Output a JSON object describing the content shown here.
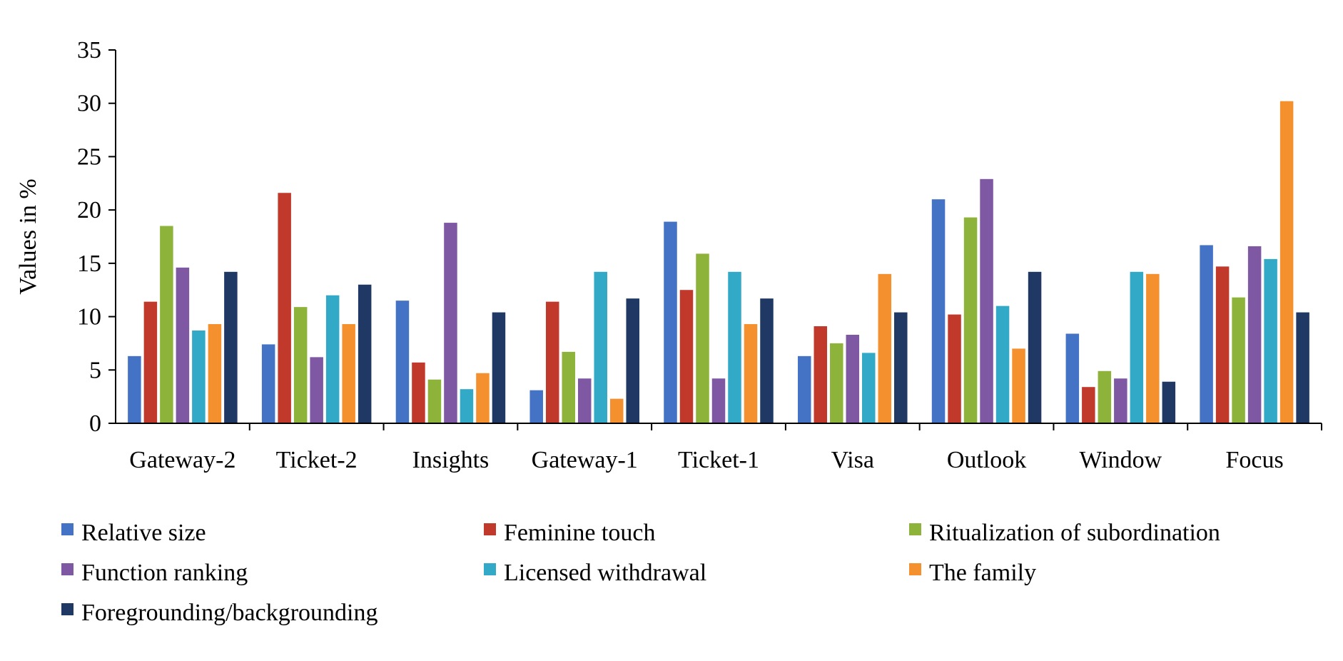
{
  "chart_data": {
    "type": "bar",
    "categories": [
      "Gateway-2",
      "Ticket-2",
      "Insights",
      "Gateway-1",
      "Ticket-1",
      "Visa",
      "Outlook",
      "Window",
      "Focus"
    ],
    "series": [
      {
        "name": "Relative size",
        "color": "#4472C4",
        "values": [
          6.3,
          7.4,
          11.5,
          3.1,
          18.9,
          6.3,
          21.0,
          8.4,
          16.7
        ]
      },
      {
        "name": "Feminine touch",
        "color": "#C0392B",
        "values": [
          11.4,
          21.6,
          5.7,
          11.4,
          12.5,
          9.1,
          10.2,
          3.4,
          14.7
        ]
      },
      {
        "name": "Ritualization of subordination",
        "color": "#8DB33A",
        "values": [
          18.5,
          10.9,
          4.1,
          6.7,
          15.9,
          7.5,
          19.3,
          4.9,
          11.8
        ]
      },
      {
        "name": "Function ranking",
        "color": "#7E58A3",
        "values": [
          14.6,
          6.2,
          18.8,
          4.2,
          4.2,
          8.3,
          22.9,
          4.2,
          16.6
        ]
      },
      {
        "name": "Licensed withdrawal",
        "color": "#31A9C7",
        "values": [
          8.7,
          12.0,
          3.2,
          14.2,
          14.2,
          6.6,
          11.0,
          14.2,
          15.4
        ]
      },
      {
        "name": "The family",
        "color": "#F5902F",
        "values": [
          9.3,
          9.3,
          4.7,
          2.3,
          9.3,
          14.0,
          7.0,
          14.0,
          30.2
        ]
      },
      {
        "name": "Foregrounding/backgrounding",
        "color": "#1F3864",
        "values": [
          14.2,
          13.0,
          10.4,
          11.7,
          11.7,
          10.4,
          14.2,
          3.9,
          10.4
        ]
      }
    ],
    "title": "",
    "xlabel": "",
    "ylabel": "Values in %",
    "ylim": [
      0,
      35
    ],
    "yticks": [
      "0",
      "5",
      "10",
      "15",
      "20",
      "25",
      "30",
      "35"
    ],
    "grid": false,
    "legend_position": "bottom"
  }
}
